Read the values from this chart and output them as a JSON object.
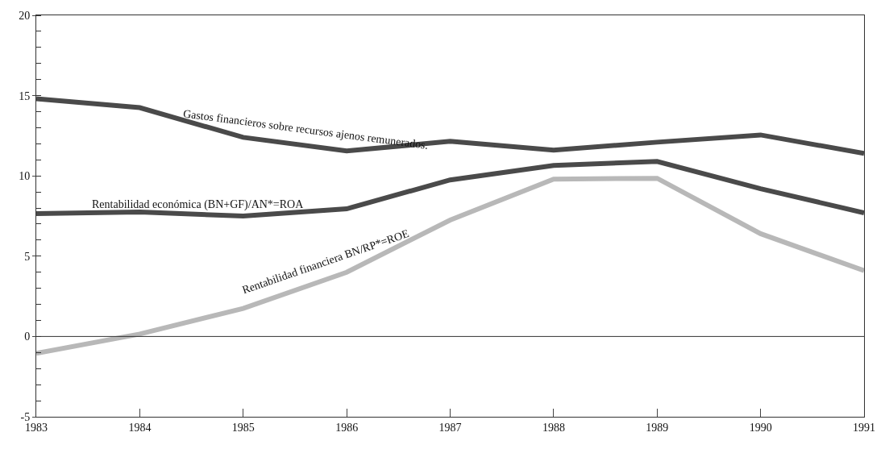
{
  "chart_data": {
    "type": "line",
    "x": [
      1983,
      1984,
      1985,
      1986,
      1987,
      1988,
      1989,
      1990,
      1991
    ],
    "series": [
      {
        "name": "Gastos financieros sobre recursos ajenos remunerados.",
        "color": "#4a4a4a",
        "values": [
          14.8,
          14.25,
          12.4,
          11.55,
          12.15,
          11.6,
          12.1,
          12.55,
          11.4
        ]
      },
      {
        "name": "Rentabilidad económica (BN+GF)/AN*=ROA",
        "color": "#4a4a4a",
        "values": [
          7.65,
          7.75,
          7.5,
          7.95,
          9.75,
          10.65,
          10.9,
          9.2,
          7.7
        ]
      },
      {
        "name": "Rentabilidad financiera BN/RP*=ROE",
        "color": "#b8b8b8",
        "values": [
          -1.05,
          0.15,
          1.75,
          4.0,
          7.25,
          9.8,
          9.85,
          6.4,
          4.1
        ]
      }
    ],
    "xlim": [
      1983,
      1991
    ],
    "xticks": [
      1983,
      1984,
      1985,
      1986,
      1987,
      1988,
      1989,
      1990,
      1991
    ],
    "ylim": [
      -5,
      20
    ],
    "yticks": [
      -5,
      0,
      5,
      10,
      15,
      20
    ],
    "ref_lines": [
      {
        "axis": "y",
        "value": 0,
        "color": "#333333"
      }
    ],
    "legend": false,
    "marker": "none",
    "line_style": "solid"
  }
}
